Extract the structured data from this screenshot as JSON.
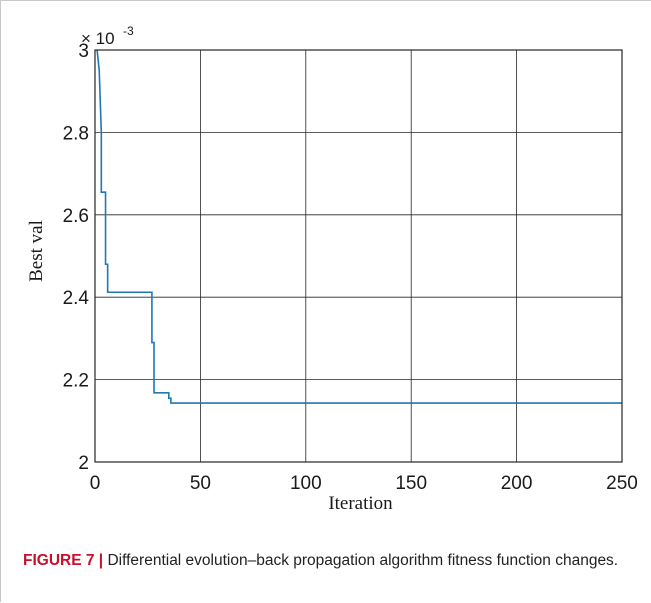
{
  "caption": {
    "label": "FIGURE 7 |",
    "text": " Differential evolution–back propagation algorithm fitness function changes."
  },
  "colors": {
    "series": "#1f77b4",
    "caption_label": "#c8102e",
    "grid": "#262626"
  },
  "chart_data": {
    "type": "line",
    "xlabel": "Iteration",
    "ylabel": "Best val",
    "exponent_label": "× 10",
    "exponent_power": "-3",
    "xlim": [
      0,
      250
    ],
    "ylim": [
      2,
      3
    ],
    "xticks": [
      0,
      50,
      100,
      150,
      200,
      250
    ],
    "yticks": [
      2,
      2.2,
      2.4,
      2.6,
      2.8,
      3
    ],
    "ytick_labels": [
      "2",
      "2.2",
      "2.4",
      "2.6",
      "2.8",
      "3"
    ],
    "grid": true,
    "series": [
      {
        "x": [
          1,
          2,
          3,
          3,
          5,
          5,
          6,
          6,
          27,
          27,
          28,
          28,
          35,
          35,
          36,
          36,
          250
        ],
        "y": [
          3.0,
          2.95,
          2.8,
          2.655,
          2.655,
          2.48,
          2.48,
          2.412,
          2.412,
          2.29,
          2.29,
          2.168,
          2.168,
          2.155,
          2.155,
          2.143,
          2.143
        ]
      }
    ]
  }
}
